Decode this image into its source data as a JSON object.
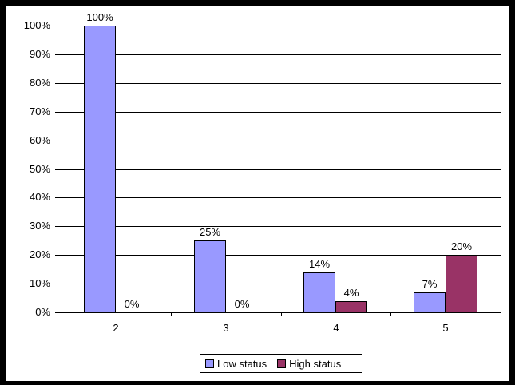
{
  "chart_data": {
    "type": "bar",
    "title": "",
    "xlabel": "",
    "ylabel": "",
    "categories": [
      "2",
      "3",
      "4",
      "5"
    ],
    "series": [
      {
        "name": "Low status",
        "color": "#9999FF",
        "values": [
          100,
          25,
          14,
          7
        ],
        "data_labels": [
          "100%",
          "25%",
          "14%",
          "7%"
        ]
      },
      {
        "name": "High status",
        "color": "#993366",
        "values": [
          0,
          0,
          4,
          20
        ],
        "data_labels": [
          "0%",
          "0%",
          "4%",
          "20%"
        ]
      }
    ],
    "ylim": [
      0,
      100
    ],
    "ytick_step": 10,
    "ytick_labels": [
      "0%",
      "10%",
      "20%",
      "30%",
      "40%",
      "50%",
      "60%",
      "70%",
      "80%",
      "90%",
      "100%"
    ],
    "grid": "horizontal",
    "legend_position": "bottom",
    "axis_color": "#000000",
    "gridline_color": "#000000",
    "plot_background": "#FFFFFF",
    "frame_color": "#000000"
  }
}
